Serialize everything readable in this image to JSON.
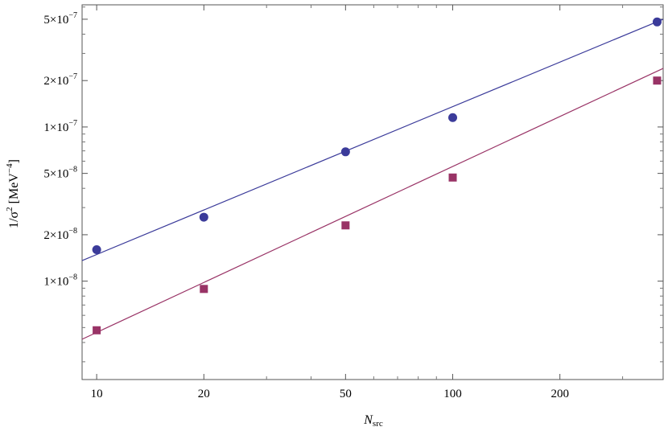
{
  "chart_data": {
    "type": "scatter",
    "xscale": "log",
    "yscale": "log",
    "xlim": [
      9.1,
      390
    ],
    "ylim": [
      2.3e-09,
      6.2e-07
    ],
    "xlabel": {
      "main": "N",
      "sub": "src"
    },
    "ylabel": {
      "main": "1/σ",
      "sup": "2",
      "unit": " [MeV",
      "unit_sup": "−4",
      "close": "]"
    },
    "x_ticks": [
      {
        "value": 10,
        "label": "10"
      },
      {
        "value": 20,
        "label": "20"
      },
      {
        "value": 50,
        "label": "50"
      },
      {
        "value": 100,
        "label": "100"
      },
      {
        "value": 200,
        "label": "200"
      }
    ],
    "x_minor_ticks": [
      30,
      40,
      60,
      70,
      80,
      90,
      300
    ],
    "y_ticks": [
      {
        "value": 1e-08,
        "mant": "1×10",
        "exp": "−8"
      },
      {
        "value": 2e-08,
        "mant": "2×10",
        "exp": "−8"
      },
      {
        "value": 5e-08,
        "mant": "5×10",
        "exp": "−8"
      },
      {
        "value": 1e-07,
        "mant": "1×10",
        "exp": "−7"
      },
      {
        "value": 2e-07,
        "mant": "2×10",
        "exp": "−7"
      },
      {
        "value": 5e-07,
        "mant": "5×10",
        "exp": "−7"
      }
    ],
    "y_minor_ticks": [
      3e-09,
      4e-09,
      5e-09,
      6e-09,
      7e-09,
      8e-09,
      9e-09,
      3e-08,
      4e-08,
      6e-08,
      7e-08,
      8e-08,
      9e-08,
      3e-07,
      4e-07,
      6e-07
    ],
    "grid": false,
    "series": [
      {
        "marker": "circle",
        "color": "#3b3b9a",
        "x": [
          10,
          20,
          50,
          100,
          375
        ],
        "y": [
          1.6e-08,
          2.6e-08,
          6.9e-08,
          1.15e-07,
          4.8e-07
        ],
        "fit": {
          "x": [
            9.1,
            390
          ],
          "y": [
            1.36e-08,
            5e-07
          ]
        }
      },
      {
        "marker": "square",
        "color": "#993366",
        "x": [
          10,
          20,
          50,
          100,
          375
        ],
        "y": [
          4.8e-09,
          8.9e-09,
          2.3e-08,
          4.7e-08,
          2e-07
        ],
        "fit": {
          "x": [
            9.1,
            390
          ],
          "y": [
            4.2e-09,
            2.4e-07
          ]
        }
      }
    ]
  }
}
